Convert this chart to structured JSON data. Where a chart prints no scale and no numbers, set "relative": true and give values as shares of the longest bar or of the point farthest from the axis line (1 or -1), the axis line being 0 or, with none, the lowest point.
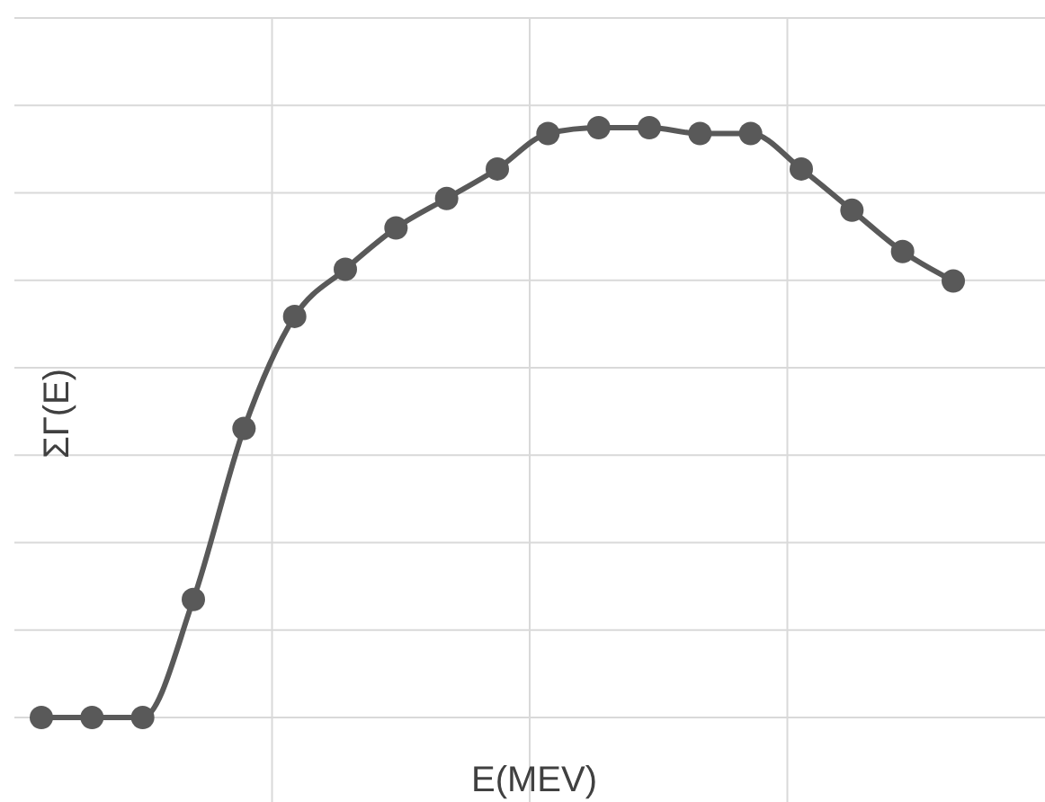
{
  "chart_data": {
    "type": "line",
    "xlabel": "E(MEV)",
    "ylabel": "ΣΓ(E)",
    "relative": true,
    "grid": true,
    "marker": "circle",
    "line_style": "solid",
    "categories": [
      null,
      null,
      null,
      null,
      null,
      null,
      null,
      null,
      null,
      null,
      null,
      null,
      null,
      null,
      null,
      null,
      null,
      null,
      null
    ],
    "series": [
      {
        "color": "#595959",
        "values": [
          0,
          0,
          0,
          0.2,
          0.49,
          0.68,
          0.76,
          0.83,
          0.88,
          0.93,
          0.99,
          1,
          1,
          0.99,
          0.99,
          0.93,
          0.86,
          0.79,
          0.74
        ]
      }
    ]
  }
}
